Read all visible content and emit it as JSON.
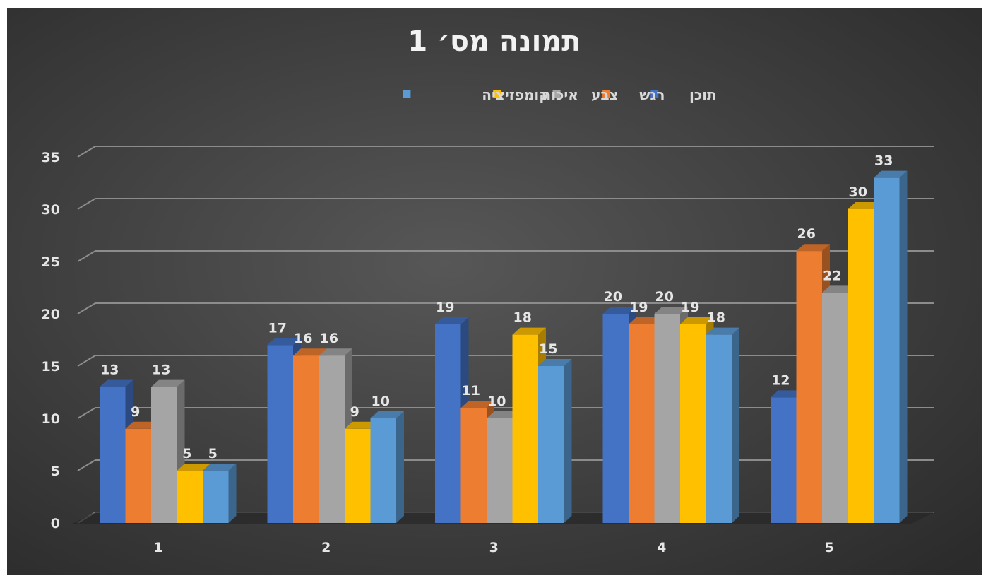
{
  "chart_data": {
    "type": "bar",
    "title": "תמונה מס׳ 1",
    "xlabel": "",
    "ylabel": "",
    "categories": [
      "1",
      "2",
      "3",
      "4",
      "5"
    ],
    "ylim": [
      0,
      35
    ],
    "yticks": [
      "0",
      "5",
      "10",
      "15",
      "20",
      "25",
      "30",
      "35"
    ],
    "grid": true,
    "legend_position": "top",
    "series": [
      {
        "name": "תוכן",
        "color": "#4472c4",
        "values": [
          13,
          17,
          19,
          20,
          12
        ]
      },
      {
        "name": "רגש",
        "color": "#ed7d31",
        "values": [
          9,
          16,
          11,
          19,
          26
        ]
      },
      {
        "name": "צבע",
        "color": "#a5a5a5",
        "values": [
          13,
          16,
          10,
          20,
          22
        ]
      },
      {
        "name": "איכות",
        "color": "#ffc000",
        "values": [
          5,
          9,
          18,
          19,
          30
        ]
      },
      {
        "name": "קומפזיציה",
        "color": "#5b9bd5",
        "values": [
          5,
          10,
          15,
          18,
          33
        ]
      }
    ]
  }
}
